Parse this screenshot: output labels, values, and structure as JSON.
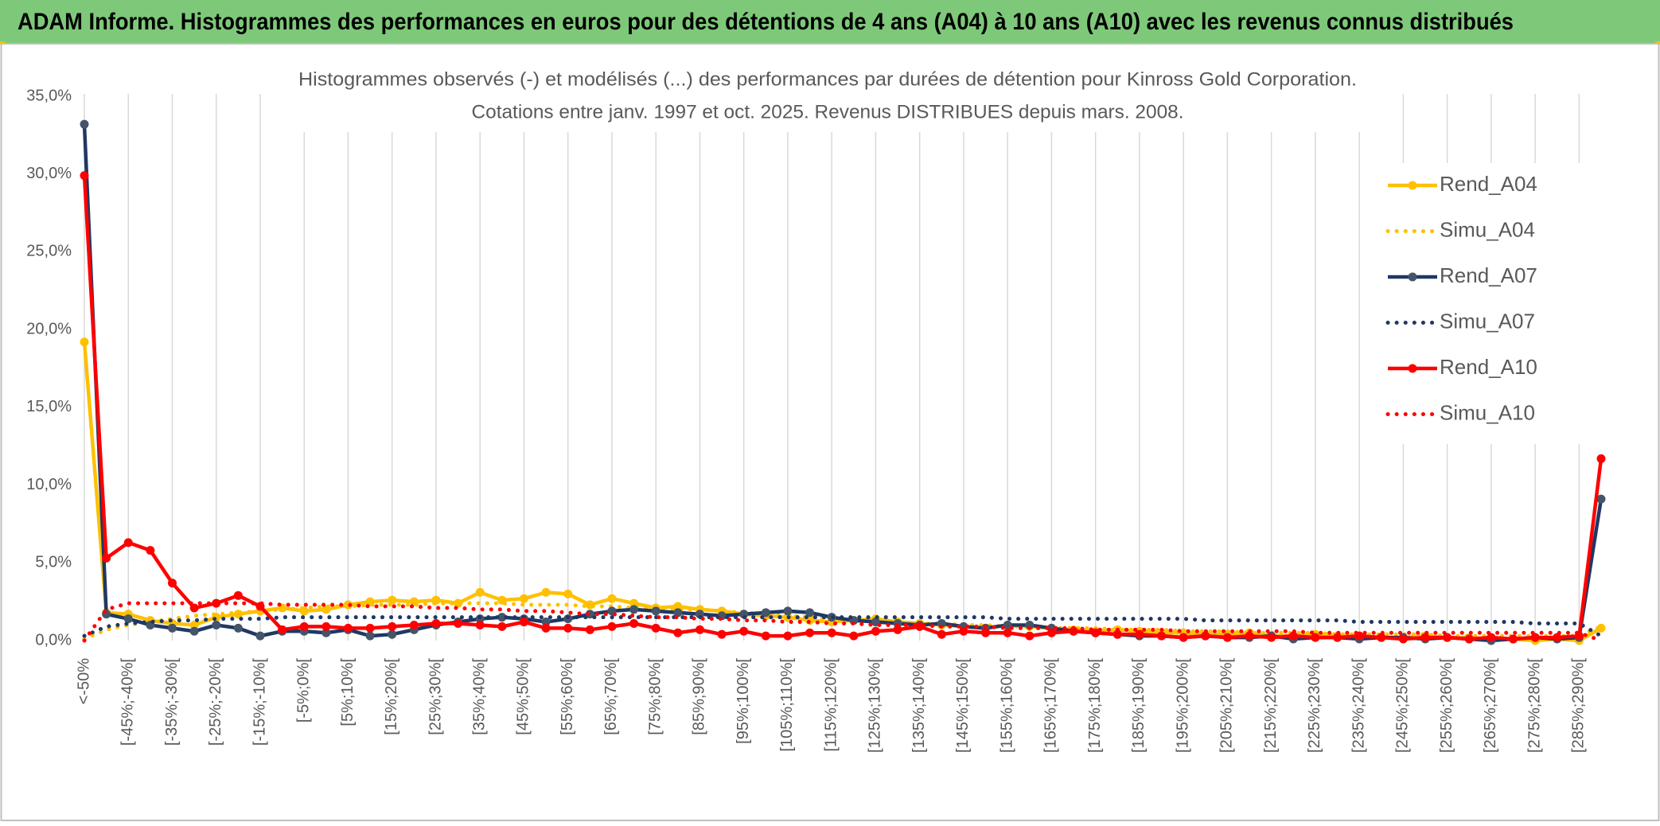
{
  "header": {
    "title": "ADAM Informe. Histogrammes des performances en euros pour des détentions de 4 ans (A04) à 10 ans (A10) avec les revenus connus distribués"
  },
  "chart_data": {
    "type": "line",
    "title": "Histogrammes observés (-) et modélisés (...) des performances par durées de détention pour Kinross Gold Corporation.",
    "subtitle": "Cotations entre janv. 1997 et oct. 2025. Revenus DISTRIBUES depuis mars. 2008.",
    "categories": [
      "<-50%",
      null,
      "[-45%;-40%[",
      null,
      "[-35%;-30%[",
      null,
      "[-25%;-20%[",
      null,
      "[-15%;-10%[",
      null,
      "[-5%;0%[",
      null,
      "[5%;10%[",
      null,
      "[15%;20%[",
      null,
      "[25%;30%[",
      null,
      "[35%;40%[",
      null,
      "[45%;50%[",
      null,
      "[55%;60%[",
      null,
      "[65%;70%[",
      null,
      "[75%;80%[",
      null,
      "[85%;90%[",
      null,
      "[95%;100%[",
      null,
      "[105%;110%[",
      null,
      "[115%;120%[",
      null,
      "[125%;130%[",
      null,
      "[135%;140%[",
      null,
      "[145%;150%[",
      null,
      "[155%;160%[",
      null,
      "[165%;170%[",
      null,
      "[175%;180%[",
      null,
      "[185%;190%[",
      null,
      "[195%;200%[",
      null,
      "[205%;210%[",
      null,
      "[215%;220%[",
      null,
      "[225%;230%[",
      null,
      "[235%;240%[",
      null,
      "[245%;250%[",
      null,
      "[255%;260%[",
      null,
      "[265%;270%[",
      null,
      "[275%;280%[",
      null,
      "[285%;290%[",
      null
    ],
    "ylim": [
      0,
      35
    ],
    "yticks": [
      {
        "value": 0,
        "label": "0,0%"
      },
      {
        "value": 5,
        "label": "5,0%"
      },
      {
        "value": 10,
        "label": "10,0%"
      },
      {
        "value": 15,
        "label": "15,0%"
      },
      {
        "value": 20,
        "label": "20,0%"
      },
      {
        "value": 25,
        "label": "25,0%"
      },
      {
        "value": 30,
        "label": "30,0%"
      },
      {
        "value": 35,
        "label": "35,0%"
      }
    ],
    "grid": "x",
    "legend": "right",
    "series": [
      {
        "name": "Rend_A04",
        "color": "#ffc000",
        "style": "solid",
        "marker": true,
        "values": [
          19.2,
          1.8,
          1.7,
          1.3,
          1.1,
          1.0,
          1.5,
          1.7,
          1.9,
          2.1,
          1.9,
          2.0,
          2.3,
          2.5,
          2.6,
          2.5,
          2.6,
          2.4,
          3.1,
          2.6,
          2.7,
          3.1,
          3.0,
          2.3,
          2.7,
          2.4,
          2.1,
          2.2,
          2.0,
          1.9,
          1.7,
          1.6,
          1.5,
          1.3,
          1.2,
          1.3,
          1.4,
          1.2,
          1.1,
          1.0,
          0.9,
          0.8,
          1.0,
          0.9,
          0.8,
          0.7,
          0.6,
          0.7,
          0.6,
          0.5,
          0.5,
          0.4,
          0.4,
          0.5,
          0.3,
          0.3,
          0.4,
          0.3,
          0.3,
          0.2,
          0.2,
          0.3,
          0.2,
          0.2,
          0.1,
          0.1,
          0.0,
          0.1,
          0.0,
          0.8
        ]
      },
      {
        "name": "Simu_A04",
        "color": "#ffc000",
        "style": "dotted",
        "marker": false,
        "values": [
          0.1,
          0.7,
          1.0,
          1.2,
          1.4,
          1.6,
          1.7,
          1.8,
          1.9,
          2.0,
          2.1,
          2.2,
          2.2,
          2.3,
          2.3,
          2.3,
          2.4,
          2.4,
          2.4,
          2.4,
          2.3,
          2.3,
          2.3,
          2.2,
          2.2,
          2.1,
          2.1,
          2.0,
          2.0,
          1.9,
          1.8,
          1.7,
          1.6,
          1.5,
          1.4,
          1.3,
          1.3,
          1.2,
          1.1,
          1.1,
          1.0,
          1.0,
          0.9,
          0.9,
          0.8,
          0.8,
          0.8,
          0.7,
          0.7,
          0.7,
          0.6,
          0.6,
          0.6,
          0.5,
          0.5,
          0.5,
          0.5,
          0.4,
          0.4,
          0.4,
          0.4,
          0.4,
          0.3,
          0.3,
          0.3,
          0.3,
          0.3,
          0.3,
          0.3,
          0.9
        ]
      },
      {
        "name": "Rend_A07",
        "color": "#1f3864",
        "marker_color": "#44546a",
        "style": "solid",
        "marker": true,
        "values": [
          33.2,
          1.7,
          1.4,
          1.0,
          0.8,
          0.6,
          1.0,
          0.8,
          0.3,
          0.6,
          0.6,
          0.5,
          0.7,
          0.3,
          0.4,
          0.7,
          1.0,
          1.2,
          1.4,
          1.5,
          1.4,
          1.2,
          1.4,
          1.7,
          1.9,
          2.0,
          1.9,
          1.8,
          1.7,
          1.6,
          1.7,
          1.8,
          1.9,
          1.8,
          1.5,
          1.3,
          1.2,
          1.1,
          1.0,
          1.1,
          0.9,
          0.8,
          1.0,
          1.0,
          0.8,
          0.6,
          0.5,
          0.4,
          0.3,
          0.3,
          0.2,
          0.3,
          0.2,
          0.2,
          0.3,
          0.1,
          0.2,
          0.2,
          0.1,
          0.2,
          0.2,
          0.1,
          0.2,
          0.1,
          0.0,
          0.1,
          0.2,
          0.1,
          0.2,
          9.1
        ]
      },
      {
        "name": "Simu_A07",
        "color": "#1f3864",
        "style": "dotted",
        "marker": false,
        "values": [
          0.3,
          0.9,
          1.1,
          1.2,
          1.3,
          1.3,
          1.4,
          1.4,
          1.4,
          1.5,
          1.5,
          1.5,
          1.5,
          1.5,
          1.5,
          1.5,
          1.5,
          1.5,
          1.5,
          1.5,
          1.5,
          1.5,
          1.5,
          1.5,
          1.5,
          1.5,
          1.5,
          1.5,
          1.5,
          1.5,
          1.5,
          1.5,
          1.5,
          1.5,
          1.5,
          1.5,
          1.5,
          1.5,
          1.5,
          1.5,
          1.5,
          1.5,
          1.4,
          1.4,
          1.4,
          1.4,
          1.4,
          1.4,
          1.4,
          1.4,
          1.4,
          1.3,
          1.3,
          1.3,
          1.3,
          1.3,
          1.3,
          1.3,
          1.2,
          1.2,
          1.2,
          1.2,
          1.2,
          1.2,
          1.2,
          1.2,
          1.1,
          1.1,
          1.1,
          0.3
        ]
      },
      {
        "name": "Rend_A10",
        "color": "#ff0000",
        "style": "solid",
        "marker": true,
        "values": [
          29.9,
          5.3,
          6.3,
          5.8,
          3.7,
          2.1,
          2.4,
          2.9,
          2.2,
          0.7,
          0.9,
          0.9,
          0.8,
          0.8,
          0.9,
          1.0,
          1.1,
          1.1,
          1.0,
          0.9,
          1.2,
          0.8,
          0.8,
          0.7,
          0.9,
          1.1,
          0.8,
          0.5,
          0.7,
          0.4,
          0.6,
          0.3,
          0.3,
          0.5,
          0.5,
          0.3,
          0.6,
          0.7,
          0.9,
          0.4,
          0.6,
          0.5,
          0.5,
          0.3,
          0.5,
          0.6,
          0.5,
          0.4,
          0.4,
          0.3,
          0.2,
          0.3,
          0.2,
          0.3,
          0.2,
          0.3,
          0.2,
          0.2,
          0.3,
          0.2,
          0.1,
          0.2,
          0.2,
          0.1,
          0.2,
          0.1,
          0.2,
          0.2,
          0.3,
          11.7
        ]
      },
      {
        "name": "Simu_A10",
        "color": "#ff0000",
        "style": "dotted",
        "marker": false,
        "values": [
          0.0,
          2.0,
          2.4,
          2.4,
          2.4,
          2.4,
          2.4,
          2.4,
          2.4,
          2.3,
          2.3,
          2.3,
          2.3,
          2.2,
          2.2,
          2.2,
          2.1,
          2.1,
          2.0,
          2.0,
          1.9,
          1.9,
          1.8,
          1.7,
          1.7,
          1.6,
          1.5,
          1.5,
          1.4,
          1.4,
          1.3,
          1.3,
          1.2,
          1.2,
          1.1,
          1.1,
          1.0,
          1.0,
          1.0,
          0.9,
          0.9,
          0.9,
          0.8,
          0.8,
          0.8,
          0.8,
          0.7,
          0.7,
          0.7,
          0.7,
          0.6,
          0.6,
          0.6,
          0.6,
          0.6,
          0.6,
          0.5,
          0.5,
          0.5,
          0.5,
          0.5,
          0.5,
          0.5,
          0.5,
          0.5,
          0.5,
          0.5,
          0.5,
          0.5,
          0.0
        ]
      }
    ]
  }
}
